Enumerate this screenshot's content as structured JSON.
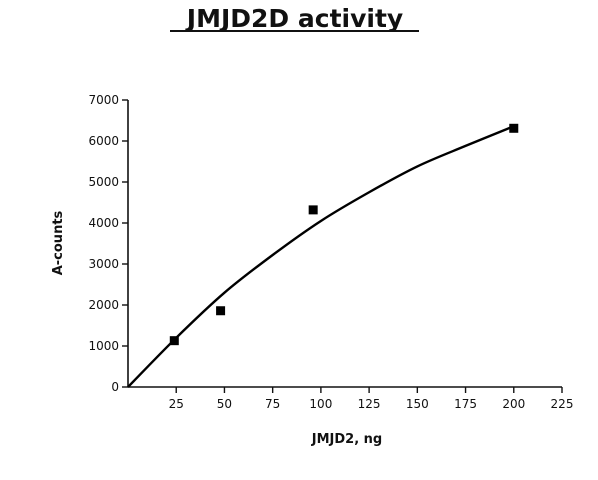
{
  "chart_data": {
    "type": "scatter",
    "title": "JMJD2D  activity",
    "xlabel": "JMJD2, ng",
    "ylabel": "A-counts",
    "xlim": [
      0,
      225
    ],
    "ylim": [
      0,
      7000
    ],
    "x_ticks": [
      25,
      50,
      75,
      100,
      125,
      150,
      175,
      200,
      225
    ],
    "y_ticks": [
      0,
      1000,
      2000,
      3000,
      4000,
      5000,
      6000,
      7000
    ],
    "grid": false,
    "legend": "none",
    "points": [
      {
        "x": 24,
        "y": 1130
      },
      {
        "x": 48,
        "y": 1860
      },
      {
        "x": 96,
        "y": 4320
      },
      {
        "x": 200,
        "y": 6310
      }
    ],
    "fit_curve": [
      {
        "x": 0,
        "y": 0
      },
      {
        "x": 25,
        "y": 1200
      },
      {
        "x": 50,
        "y": 2300
      },
      {
        "x": 75,
        "y": 3220
      },
      {
        "x": 100,
        "y": 4050
      },
      {
        "x": 125,
        "y": 4750
      },
      {
        "x": 150,
        "y": 5380
      },
      {
        "x": 175,
        "y": 5880
      },
      {
        "x": 200,
        "y": 6360
      }
    ],
    "marker": "square",
    "color": "#000000"
  }
}
